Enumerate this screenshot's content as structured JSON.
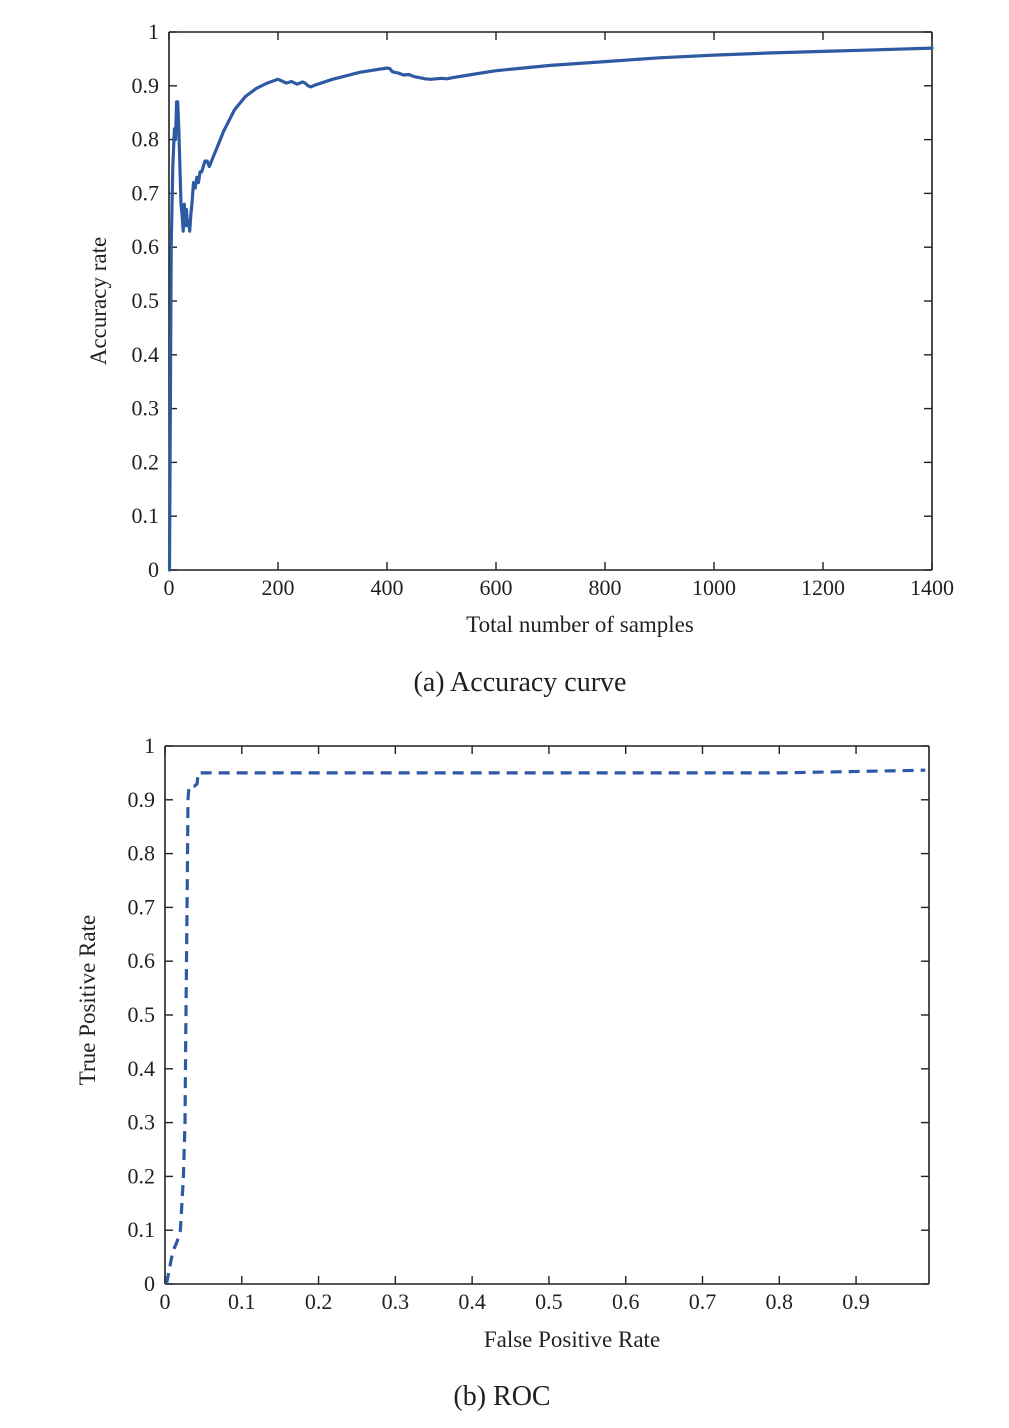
{
  "chart_data": [
    {
      "type": "line",
      "caption": "(a) Accuracy curve",
      "xlabel": "Total number of samples",
      "ylabel": "Accuracy rate",
      "xlim": [
        0,
        1400
      ],
      "ylim": [
        0,
        1
      ],
      "xticks": [
        0,
        200,
        400,
        600,
        800,
        1000,
        1200,
        1400
      ],
      "xtick_labels": [
        "0",
        "200",
        "400",
        "600",
        "800",
        "1000",
        "1200",
        "1400"
      ],
      "yticks": [
        0,
        0.1,
        0.2,
        0.3,
        0.4,
        0.5,
        0.6,
        0.7,
        0.8,
        0.9,
        1
      ],
      "ytick_labels": [
        "0",
        "0.1",
        "0.2",
        "0.3",
        "0.4",
        "0.5",
        "0.6",
        "0.7",
        "0.8",
        "0.9",
        "1"
      ],
      "grid": false,
      "color": "#2e5aa3",
      "line_style": "solid",
      "series": [
        {
          "x": [
            1,
            4,
            7,
            10,
            12,
            14,
            16,
            18,
            20,
            22,
            24,
            26,
            28,
            30,
            32,
            34,
            36,
            38,
            40,
            42,
            45,
            48,
            51,
            54,
            57,
            60,
            63,
            66,
            70,
            74,
            78,
            82,
            86,
            90,
            100,
            120,
            140,
            160,
            180,
            200,
            205,
            215,
            225,
            235,
            245,
            250,
            255,
            260,
            265,
            270,
            300,
            350,
            400,
            405,
            410,
            420,
            430,
            440,
            450,
            460,
            470,
            480,
            490,
            500,
            510,
            520,
            550,
            600,
            700,
            800,
            900,
            1000,
            1100,
            1200,
            1300,
            1400
          ],
          "y": [
            0,
            0.6,
            0.75,
            0.82,
            0.8,
            0.87,
            0.87,
            0.82,
            0.75,
            0.68,
            0.66,
            0.63,
            0.68,
            0.64,
            0.67,
            0.64,
            0.65,
            0.63,
            0.66,
            0.68,
            0.72,
            0.71,
            0.73,
            0.72,
            0.74,
            0.74,
            0.75,
            0.76,
            0.76,
            0.75,
            0.76,
            0.77,
            0.78,
            0.79,
            0.815,
            0.855,
            0.88,
            0.895,
            0.905,
            0.912,
            0.91,
            0.905,
            0.908,
            0.903,
            0.907,
            0.905,
            0.9,
            0.898,
            0.9,
            0.902,
            0.912,
            0.925,
            0.933,
            0.932,
            0.926,
            0.924,
            0.92,
            0.921,
            0.917,
            0.915,
            0.913,
            0.912,
            0.913,
            0.914,
            0.913,
            0.915,
            0.92,
            0.928,
            0.938,
            0.945,
            0.952,
            0.957,
            0.961,
            0.964,
            0.967,
            0.97
          ]
        }
      ]
    },
    {
      "type": "line",
      "caption": "(b) ROC",
      "xlabel": "False Positive Rate",
      "ylabel": "True Positive Rate",
      "xlim": [
        0,
        0.995
      ],
      "ylim": [
        0,
        1
      ],
      "xticks": [
        0,
        0.1,
        0.2,
        0.3,
        0.4,
        0.5,
        0.6,
        0.7,
        0.8,
        0.9
      ],
      "xtick_labels": [
        "0",
        "0.1",
        "0.2",
        "0.3",
        "0.4",
        "0.5",
        "0.6",
        "0.7",
        "0.8",
        "0.9"
      ],
      "yticks": [
        0,
        0.1,
        0.2,
        0.3,
        0.4,
        0.5,
        0.6,
        0.7,
        0.8,
        0.9,
        1
      ],
      "ytick_labels": [
        "0",
        "0.1",
        "0.2",
        "0.3",
        "0.4",
        "0.5",
        "0.6",
        "0.7",
        "0.8",
        "0.9",
        "1"
      ],
      "grid": false,
      "color": "#2e5aa3",
      "line_style": "dashed",
      "series": [
        {
          "x": [
            0.002,
            0.006,
            0.01,
            0.016,
            0.02,
            0.024,
            0.026,
            0.027,
            0.028,
            0.029,
            0.03,
            0.031,
            0.032,
            0.038,
            0.042,
            0.043,
            0.05,
            0.2,
            0.5,
            0.8,
            0.99
          ],
          "y": [
            0,
            0.03,
            0.06,
            0.08,
            0.1,
            0.2,
            0.3,
            0.45,
            0.6,
            0.75,
            0.9,
            0.92,
            0.925,
            0.925,
            0.93,
            0.95,
            0.95,
            0.95,
            0.95,
            0.95,
            0.955
          ]
        }
      ]
    }
  ]
}
